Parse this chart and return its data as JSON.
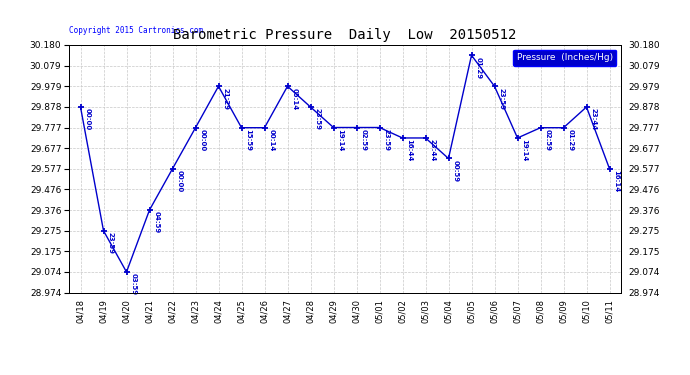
{
  "title": "Barometric Pressure  Daily  Low  20150512",
  "copyright": "Copyright 2015 Cartronics.com",
  "legend_label": "Pressure  (Inches/Hg)",
  "dates": [
    "04/18",
    "04/19",
    "04/20",
    "04/21",
    "04/22",
    "04/23",
    "04/24",
    "04/25",
    "04/26",
    "04/27",
    "04/28",
    "04/29",
    "04/30",
    "05/01",
    "05/02",
    "05/03",
    "05/04",
    "05/05",
    "05/06",
    "05/07",
    "05/08",
    "05/09",
    "05/10",
    "05/11"
  ],
  "values": [
    29.878,
    29.275,
    29.074,
    29.376,
    29.577,
    29.777,
    29.979,
    29.777,
    29.777,
    29.979,
    29.878,
    29.778,
    29.778,
    29.778,
    29.727,
    29.727,
    29.627,
    30.13,
    29.979,
    29.727,
    29.777,
    29.777,
    29.878,
    29.577
  ],
  "point_labels": [
    "00:00",
    "23:59",
    "03:59",
    "04:59",
    "00:00",
    "00:00",
    "21:29",
    "15:59",
    "00:14",
    "05:14",
    "23:59",
    "19:14",
    "02:59",
    "23:59",
    "16:44",
    "23:44",
    "00:59",
    "01:29",
    "23:59",
    "19:14",
    "02:59",
    "01:29",
    "23:44",
    "16:14"
  ],
  "ylim_min": 28.974,
  "ylim_max": 30.18,
  "yticks": [
    28.974,
    29.074,
    29.175,
    29.275,
    29.376,
    29.476,
    29.577,
    29.677,
    29.777,
    29.878,
    29.979,
    30.079,
    30.18
  ],
  "line_color": "#0000cc",
  "bg_color": "#ffffff",
  "grid_color": "#c8c8c8",
  "title_color": "#000000",
  "legend_bg": "#0000cc",
  "legend_text_color": "#ffffff"
}
